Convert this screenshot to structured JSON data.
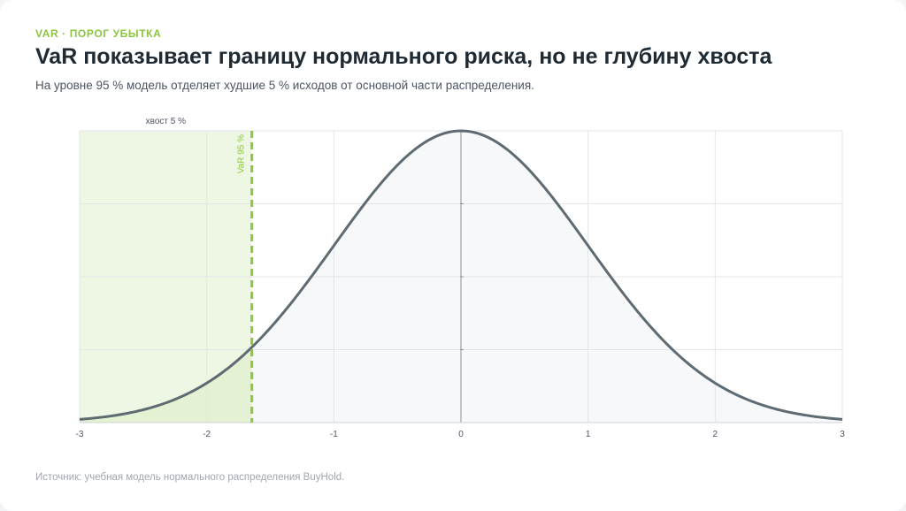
{
  "header": {
    "eyebrow": "VAR · ПОРОГ УБЫТКА",
    "title": "VaR показывает границу нормального риска, но не глубину хвоста",
    "subtitle": "На уровне 95 % модель отделяет худшие 5 % исходов от основной части распределения."
  },
  "footer": {
    "source": "Источник: учебная модель нормального распределения BuyHold."
  },
  "colors": {
    "accent": "#8cc63f",
    "tail_fill": "#eef7e3",
    "body_fill": "#f6f8fa",
    "curve": "#5f6b72",
    "grid": "#e3e6e9"
  },
  "chart_data": {
    "type": "area",
    "distribution": "standard normal density",
    "xlim": [
      -3,
      3
    ],
    "x_ticks": [
      "-3",
      "-2",
      "-1",
      "0",
      "1",
      "2",
      "3"
    ],
    "ylabel": "",
    "xlabel": "",
    "grid": true,
    "var_line": {
      "x": -1.645,
      "label": "VaR 95 %"
    },
    "tail_region": {
      "from": -3,
      "to": -1.645,
      "label": "хвост 5 %"
    }
  }
}
